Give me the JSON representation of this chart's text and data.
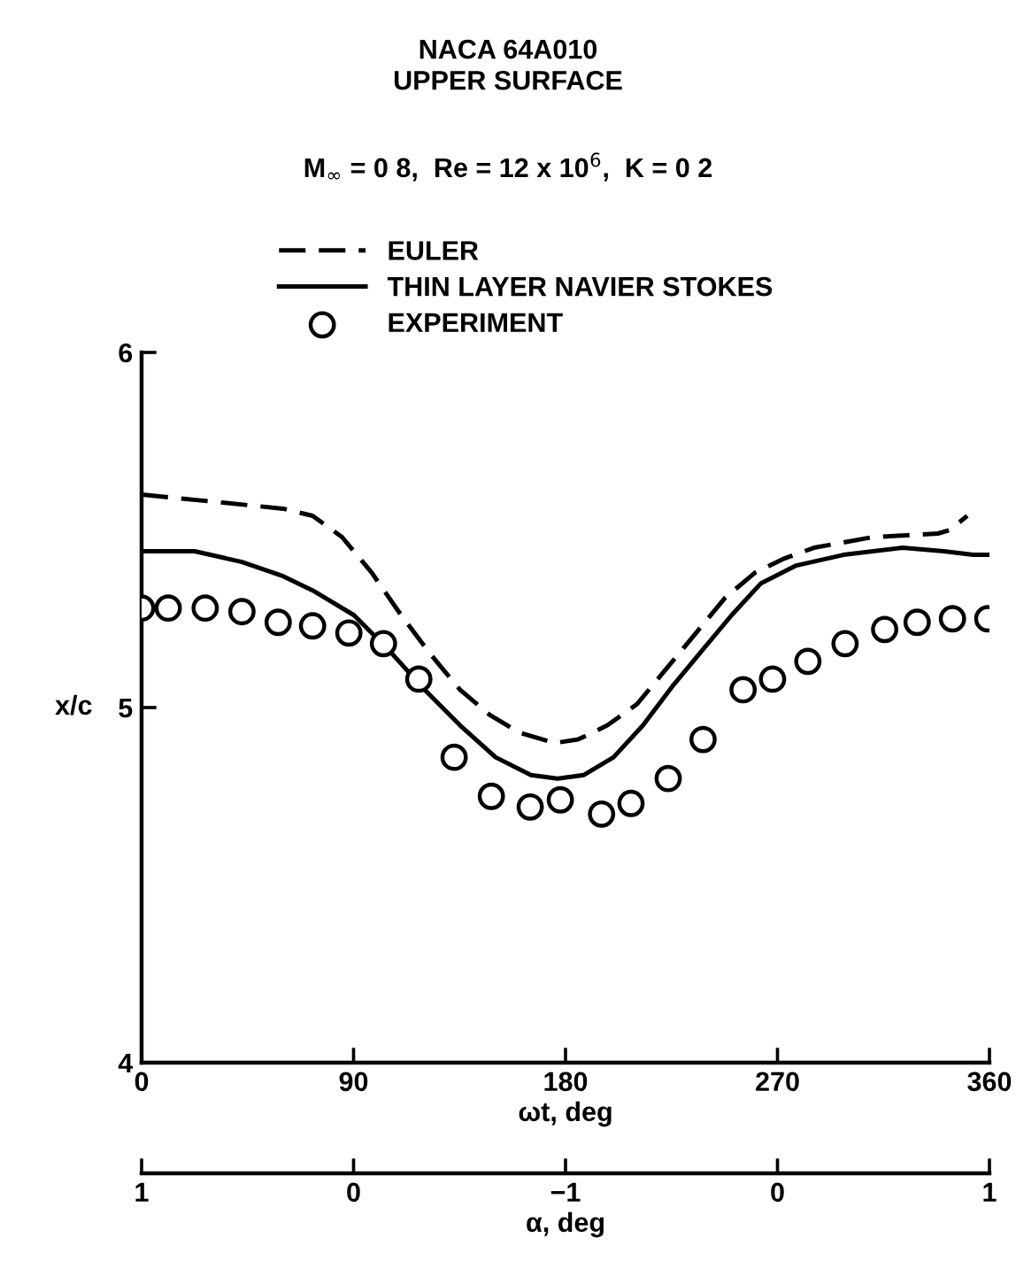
{
  "chart_data": {
    "type": "line",
    "title": "NACA 64A010\nUPPER SURFACE",
    "subtitle": "M$_{∞}$ = 0 8,  Re = 12 x 10$^{6}$,  K = 0 2",
    "xlabel": "ωt, deg",
    "ylabel": "x/c",
    "x2label": "α, deg",
    "xlim": [
      0,
      360
    ],
    "xticks": [
      0,
      90,
      180,
      270,
      360
    ],
    "ylim": [
      4,
      6
    ],
    "yticks": [
      4,
      5,
      6
    ],
    "annotations": [
      "1",
      "0",
      "−1",
      "0",
      "1"
    ],
    "grid": false,
    "legend": "top",
    "series": [
      {
        "name": "EULER",
        "type": "line",
        "line_style": "dashed",
        "color": "#000000",
        "x": [
          0,
          60.1,
          72.6,
          85.1,
          97.7,
          110.2,
          122.7,
          135.2,
          147.7,
          160.2,
          175.3,
          185.3,
          197.8,
          210.4,
          222.9,
          235.4,
          247.9,
          260.5,
          273,
          285.5,
          310.5,
          338.1,
          343.1,
          350.6
        ],
        "values": [
          5.6,
          5.56,
          5.54,
          5.48,
          5.38,
          5.26,
          5.15,
          5.05,
          4.98,
          4.93,
          4.9,
          4.91,
          4.95,
          5.01,
          5.11,
          5.21,
          5.31,
          5.38,
          5.42,
          5.45,
          5.48,
          5.49,
          5.5,
          5.54
        ]
      },
      {
        "name": "THIN LAYER NAVIER STOKES",
        "type": "line",
        "line_style": "solid",
        "color": "#000000",
        "x": [
          0,
          22.5,
          42.6,
          60.1,
          72.6,
          90.2,
          105.2,
          120.2,
          135.2,
          150.3,
          165.3,
          176.6,
          187.8,
          200.4,
          212.9,
          225.4,
          237.9,
          250.5,
          263,
          278,
          298,
          323,
          340.6,
          353.1,
          359.3
        ],
        "values": [
          5.44,
          5.44,
          5.41,
          5.37,
          5.33,
          5.26,
          5.16,
          5.05,
          4.95,
          4.86,
          4.81,
          4.8,
          4.81,
          4.86,
          4.95,
          5.06,
          5.16,
          5.26,
          5.35,
          5.4,
          5.43,
          5.45,
          5.44,
          5.43,
          5.43
        ]
      },
      {
        "name": "EXPERIMENT",
        "type": "scatter",
        "marker": "circle",
        "color": "#000000",
        "x": [
          0,
          11.3,
          27,
          42.6,
          58,
          72.6,
          88,
          102.7,
          117.7,
          132.7,
          148.5,
          165,
          177.8,
          195.3,
          207.8,
          223.6,
          238.4,
          255.4,
          267.9,
          282.9,
          298.7,
          315.5,
          329.3,
          344.3,
          359.3
        ],
        "values": [
          5.28,
          5.28,
          5.28,
          5.27,
          5.24,
          5.23,
          5.21,
          5.18,
          5.08,
          4.86,
          4.75,
          4.72,
          4.74,
          4.7,
          4.73,
          4.8,
          4.91,
          5.05,
          5.08,
          5.13,
          5.18,
          5.22,
          5.24,
          5.25,
          5.25
        ]
      }
    ]
  }
}
